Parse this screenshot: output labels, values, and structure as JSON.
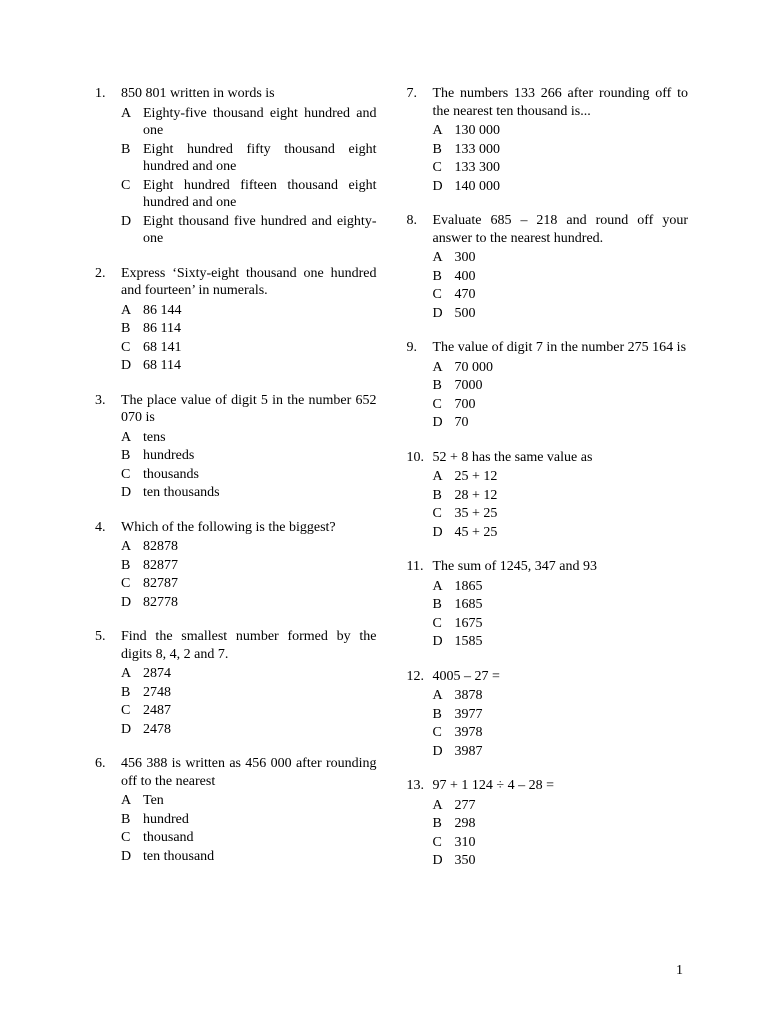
{
  "page_number": "1",
  "left": [
    {
      "num": "1.",
      "stem": "850 801 written in words is",
      "choices": [
        {
          "l": "A",
          "t": "Eighty-five thousand eight hundred and one"
        },
        {
          "l": "B",
          "t": "Eight hundred fifty thousand eight hundred and one"
        },
        {
          "l": "C",
          "t": "Eight hundred fifteen thousand eight hundred and one"
        },
        {
          "l": "D",
          "t": "Eight thousand five hundred and eighty-one"
        }
      ]
    },
    {
      "num": "2.",
      "stem": "Express ‘Sixty-eight thousand one hundred and fourteen’ in numerals.",
      "choices": [
        {
          "l": "A",
          "t": "86 144"
        },
        {
          "l": "B",
          "t": "86 114"
        },
        {
          "l": "C",
          "t": "68 141"
        },
        {
          "l": "D",
          "t": "68 114"
        }
      ]
    },
    {
      "num": "3.",
      "stem": "The place value of digit 5 in the number 652 070 is",
      "choices": [
        {
          "l": "A",
          "t": "tens"
        },
        {
          "l": "B",
          "t": "hundreds"
        },
        {
          "l": "C",
          "t": "thousands"
        },
        {
          "l": "D",
          "t": "ten thousands"
        }
      ]
    },
    {
      "num": "4.",
      "stem": "Which of the following is the biggest?",
      "choices": [
        {
          "l": "A",
          "t": "82878"
        },
        {
          "l": "B",
          "t": "82877"
        },
        {
          "l": "C",
          "t": "82787"
        },
        {
          "l": "D",
          "t": "82778"
        }
      ]
    },
    {
      "num": "5.",
      "stem": "Find the smallest number formed by the digits 8, 4, 2 and 7.",
      "choices": [
        {
          "l": "A",
          "t": "2874"
        },
        {
          "l": "B",
          "t": "2748"
        },
        {
          "l": "C",
          "t": "2487"
        },
        {
          "l": "D",
          "t": "2478"
        }
      ]
    },
    {
      "num": "6.",
      "stem": "456 388 is written as 456 000 after rounding off to the nearest",
      "choices": [
        {
          "l": "A",
          "t": "Ten"
        },
        {
          "l": "B",
          "t": "hundred"
        },
        {
          "l": "C",
          "t": "thousand"
        },
        {
          "l": "D",
          "t": "ten thousand"
        }
      ]
    }
  ],
  "right": [
    {
      "num": "7.",
      "stem": "The numbers 133 266 after rounding off to the nearest ten thousand is...",
      "choices": [
        {
          "l": "A",
          "t": "130 000"
        },
        {
          "l": "B",
          "t": "133 000"
        },
        {
          "l": "C",
          "t": "133 300"
        },
        {
          "l": "D",
          "t": "140 000"
        }
      ]
    },
    {
      "num": "8.",
      "stem": "Evaluate 685 – 218 and round off your answer to the nearest hundred.",
      "choices": [
        {
          "l": "A",
          "t": "300"
        },
        {
          "l": "B",
          "t": "400"
        },
        {
          "l": "C",
          "t": "470"
        },
        {
          "l": "D",
          "t": "500"
        }
      ]
    },
    {
      "num": "9.",
      "stem": "The value of digit 7 in the number 275 164 is",
      "choices": [
        {
          "l": "A",
          "t": "70 000"
        },
        {
          "l": "B",
          "t": "7000"
        },
        {
          "l": "C",
          "t": "700"
        },
        {
          "l": "D",
          "t": "70"
        }
      ]
    },
    {
      "num": "10.",
      "stem": "52 + 8 has the same value as",
      "choices": [
        {
          "l": "A",
          "t": "25 + 12"
        },
        {
          "l": "B",
          "t": "28 + 12"
        },
        {
          "l": "C",
          "t": "35 + 25"
        },
        {
          "l": "D",
          "t": "45 + 25"
        }
      ]
    },
    {
      "num": "11.",
      "stem": "The  sum of 1245, 347 and 93",
      "choices": [
        {
          "l": "A",
          "t": "1865"
        },
        {
          "l": "B",
          "t": "1685"
        },
        {
          "l": "C",
          "t": "1675"
        },
        {
          "l": "D",
          "t": "1585"
        }
      ]
    },
    {
      "num": "12.",
      "stem": "4005 – 27 =",
      "choices": [
        {
          "l": "A",
          "t": "3878"
        },
        {
          "l": "B",
          "t": "3977"
        },
        {
          "l": "C",
          "t": "3978"
        },
        {
          "l": "D",
          "t": "3987"
        }
      ]
    },
    {
      "num": "13.",
      "stem": "97 + 1 124 ÷ 4 – 28 =",
      "choices": [
        {
          "l": "A",
          "t": "277"
        },
        {
          "l": "B",
          "t": "298"
        },
        {
          "l": "C",
          "t": "310"
        },
        {
          "l": "D",
          "t": "350"
        }
      ]
    }
  ]
}
